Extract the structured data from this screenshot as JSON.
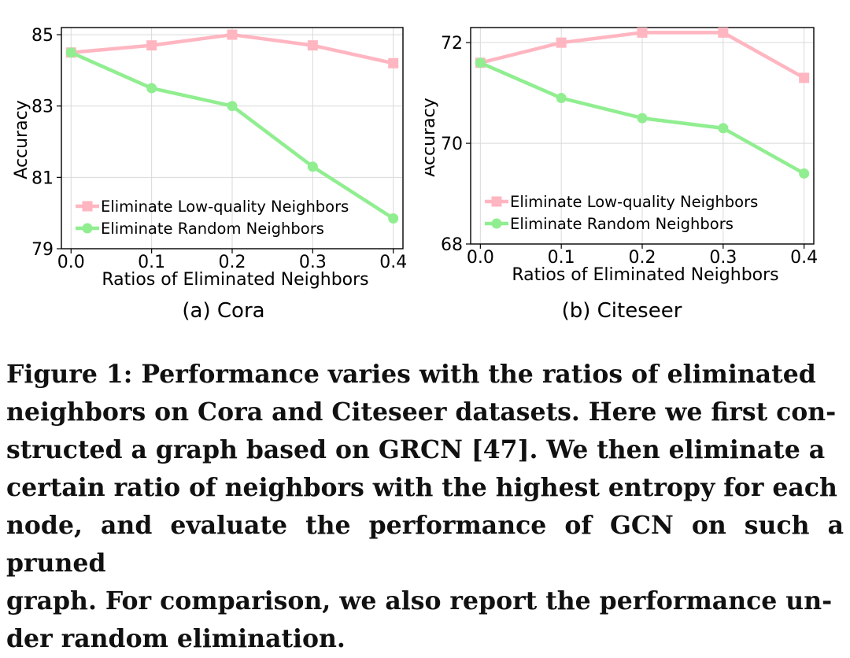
{
  "chart_data": [
    {
      "type": "line",
      "subcaption": "(a)  Cora",
      "xlabel": "Ratios of Eliminated Neighbors",
      "ylabel": "Accuracy",
      "x": [
        0.0,
        0.1,
        0.2,
        0.3,
        0.4
      ],
      "x_tick_labels": [
        "0.0",
        "0.1",
        "0.2",
        "0.3",
        "0.4"
      ],
      "y_ticks": [
        79,
        81,
        83,
        85
      ],
      "y_tick_labels": [
        "79",
        "81",
        "83",
        "85"
      ],
      "ylim": [
        79,
        85.2
      ],
      "xlim": [
        -0.012,
        0.412
      ],
      "grid": true,
      "legend_position": "lower-left",
      "series": [
        {
          "name": "Eliminate Low-quality Neighbors",
          "color": "#FFB6C1",
          "marker": "square",
          "values": [
            84.5,
            84.7,
            85.0,
            84.7,
            84.2
          ]
        },
        {
          "name": "Eliminate Random Neighbors",
          "color": "#90EE90",
          "marker": "circle",
          "values": [
            84.5,
            83.5,
            83.0,
            81.3,
            79.85
          ]
        }
      ]
    },
    {
      "type": "line",
      "subcaption": "(b)  Citeseer",
      "xlabel": "Ratios of Eliminated Neighbors",
      "ylabel": "Accuracy",
      "x": [
        0.0,
        0.1,
        0.2,
        0.3,
        0.4
      ],
      "x_tick_labels": [
        "0.0",
        "0.1",
        "0.2",
        "0.3",
        "0.4"
      ],
      "y_ticks": [
        68,
        70,
        72
      ],
      "y_tick_labels": [
        "68",
        "70",
        "72"
      ],
      "ylim": [
        68,
        72.3
      ],
      "xlim": [
        -0.012,
        0.412
      ],
      "grid": true,
      "legend_position": "lower-left",
      "series": [
        {
          "name": "Eliminate Low-quality Neighbors",
          "color": "#FFB6C1",
          "marker": "square",
          "values": [
            71.6,
            72.0,
            72.2,
            72.2,
            71.3
          ]
        },
        {
          "name": "Eliminate Random Neighbors",
          "color": "#90EE90",
          "marker": "circle",
          "values": [
            71.6,
            70.9,
            70.5,
            70.3,
            69.4
          ]
        }
      ]
    }
  ],
  "caption": {
    "lines": [
      "Figure 1: Performance varies with the ratios of eliminated",
      "neighbors on Cora and Citeseer datasets. Here we first con-",
      "structed a graph based on GRCN [47]. We then eliminate a",
      "certain ratio of neighbors with the highest entropy for each",
      "node, and evaluate the performance of GCN on such a pruned",
      "graph. For comparison, we also report the performance un-",
      "der random elimination."
    ]
  }
}
